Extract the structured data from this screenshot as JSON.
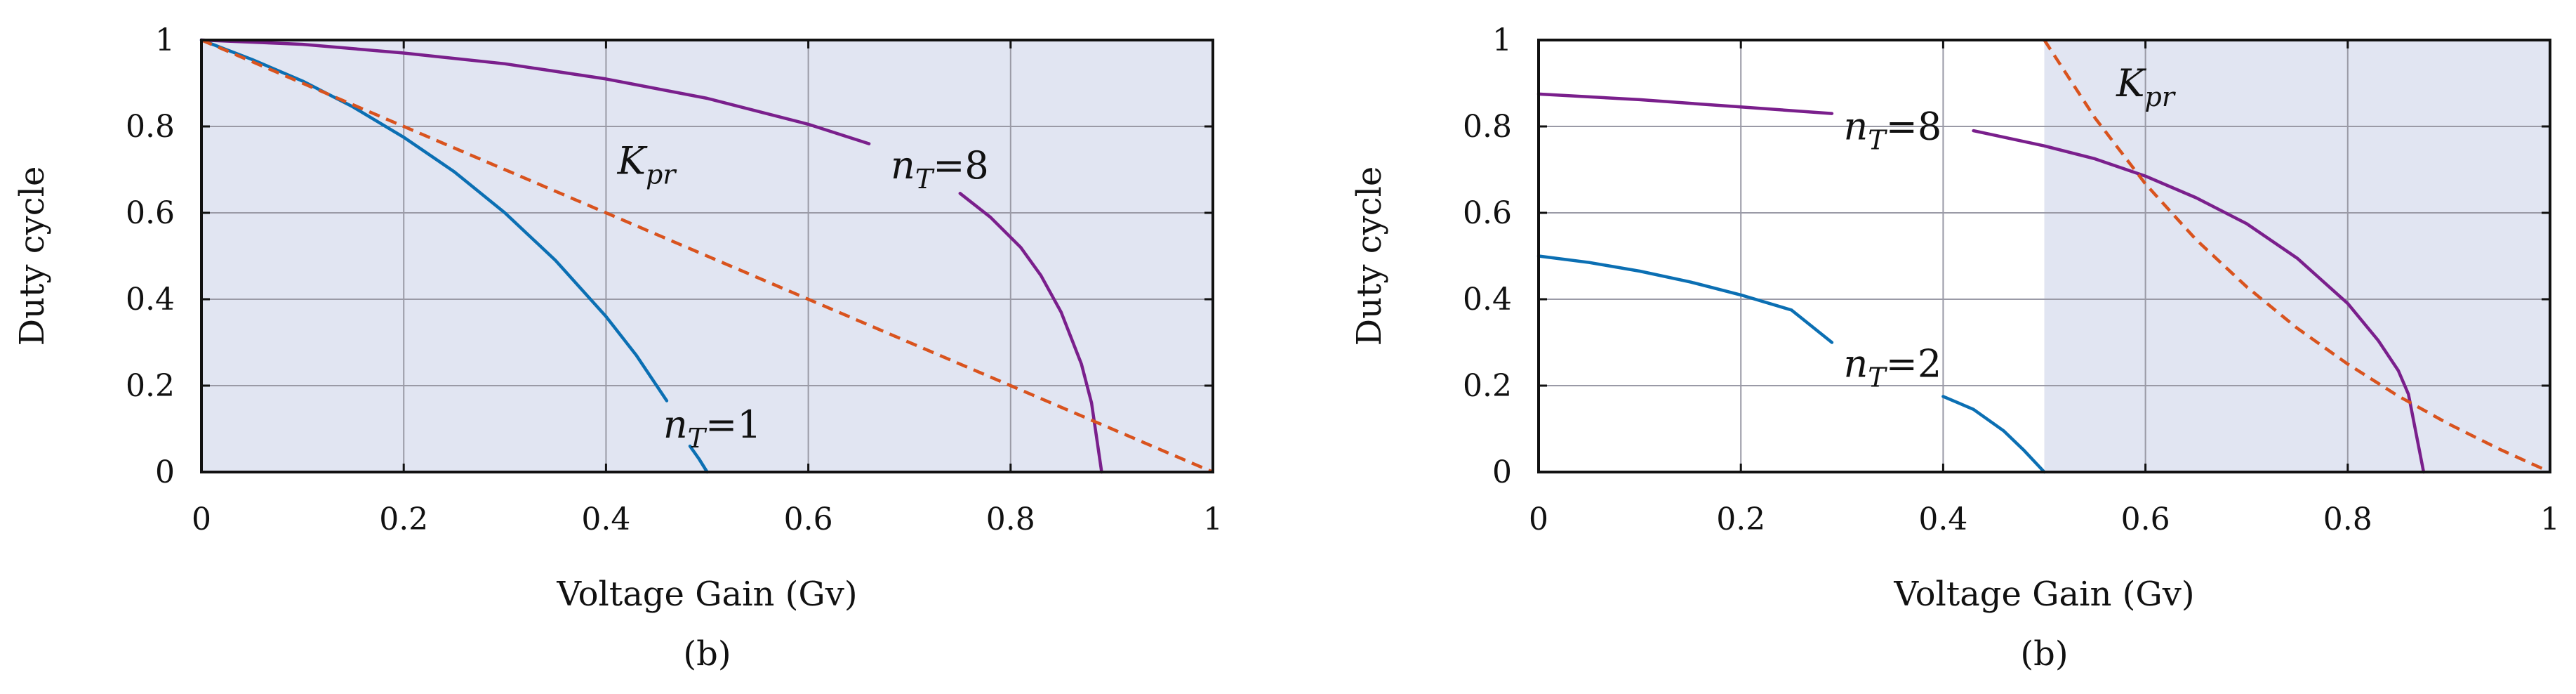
{
  "chart_data": [
    {
      "type": "line",
      "xlabel": "Voltage Gain (Gv)",
      "ylabel": "Duty cycle",
      "caption": "(b)",
      "xlim": [
        0,
        1
      ],
      "ylim": [
        0,
        1
      ],
      "xticks": [
        "0",
        "0.2",
        "0.4",
        "0.6",
        "0.8",
        "1"
      ],
      "yticks": [
        "0",
        "0.2",
        "0.4",
        "0.6",
        "0.8",
        "1"
      ],
      "grid": true,
      "shaded_region": [
        0,
        1
      ],
      "colors": {
        "shade": "#e1e5f2",
        "nT_low": "#0b6fb3",
        "nT_high": "#7a1f8c",
        "Kpr": "#d9531e"
      },
      "labels": {
        "nT_low": {
          "prefix": "n",
          "sub": "T",
          "value": "=1"
        },
        "nT_high": {
          "prefix": "n",
          "sub": "T",
          "value": "=8"
        },
        "Kpr": {
          "prefix": "K",
          "sub": "pr"
        }
      },
      "series": [
        {
          "key": "nT_low",
          "dash": false,
          "segments": [
            [
              [
                0,
                1
              ],
              [
                0.05,
                0.955
              ],
              [
                0.1,
                0.905
              ],
              [
                0.15,
                0.845
              ],
              [
                0.2,
                0.775
              ],
              [
                0.25,
                0.695
              ],
              [
                0.3,
                0.6
              ],
              [
                0.35,
                0.49
              ],
              [
                0.4,
                0.36
              ],
              [
                0.43,
                0.27
              ],
              [
                0.46,
                0.165
              ]
            ],
            [
              [
                0.483,
                0.06
              ],
              [
                0.492,
                0.03
              ],
              [
                0.5,
                0
              ]
            ]
          ]
        },
        {
          "key": "nT_high",
          "dash": false,
          "segments": [
            [
              [
                0,
                1
              ],
              [
                0.1,
                0.99
              ],
              [
                0.2,
                0.97
              ],
              [
                0.3,
                0.945
              ],
              [
                0.4,
                0.91
              ],
              [
                0.5,
                0.865
              ],
              [
                0.6,
                0.805
              ],
              [
                0.66,
                0.76
              ]
            ],
            [
              [
                0.75,
                0.645
              ],
              [
                0.78,
                0.59
              ],
              [
                0.81,
                0.52
              ],
              [
                0.83,
                0.455
              ],
              [
                0.85,
                0.37
              ],
              [
                0.87,
                0.25
              ],
              [
                0.88,
                0.16
              ],
              [
                0.89,
                0
              ]
            ]
          ]
        },
        {
          "key": "Kpr",
          "dash": true,
          "segments": [
            [
              [
                0,
                1
              ],
              [
                1,
                0
              ]
            ]
          ]
        }
      ]
    },
    {
      "type": "line",
      "xlabel": "Voltage Gain (Gv)",
      "ylabel": "Duty cycle",
      "caption": "(b)",
      "xlim": [
        0,
        1
      ],
      "ylim": [
        0,
        1
      ],
      "xticks": [
        "0",
        "0.2",
        "0.4",
        "0.6",
        "0.8",
        "1"
      ],
      "yticks": [
        "0",
        "0.2",
        "0.4",
        "0.6",
        "0.8",
        "1"
      ],
      "grid": true,
      "shaded_region": [
        0.5,
        1
      ],
      "colors": {
        "shade": "#e1e5f2",
        "nT_low": "#0b6fb3",
        "nT_high": "#7a1f8c",
        "Kpr": "#d9531e"
      },
      "labels": {
        "nT_low": {
          "prefix": "n",
          "sub": "T",
          "value": "=2"
        },
        "nT_high": {
          "prefix": "n",
          "sub": "T",
          "value": "=8"
        },
        "Kpr": {
          "prefix": "K",
          "sub": "pr"
        }
      },
      "series": [
        {
          "key": "nT_low",
          "dash": false,
          "segments": [
            [
              [
                0,
                0.5
              ],
              [
                0.05,
                0.485
              ],
              [
                0.1,
                0.465
              ],
              [
                0.15,
                0.44
              ],
              [
                0.2,
                0.41
              ],
              [
                0.25,
                0.375
              ],
              [
                0.29,
                0.3
              ]
            ],
            [
              [
                0.4,
                0.175
              ],
              [
                0.43,
                0.145
              ],
              [
                0.46,
                0.095
              ],
              [
                0.48,
                0.05
              ],
              [
                0.5,
                0
              ]
            ]
          ]
        },
        {
          "key": "nT_high",
          "dash": false,
          "segments": [
            [
              [
                0,
                0.875
              ],
              [
                0.1,
                0.862
              ],
              [
                0.2,
                0.845
              ],
              [
                0.29,
                0.83
              ]
            ],
            [
              [
                0.43,
                0.79
              ],
              [
                0.5,
                0.755
              ],
              [
                0.55,
                0.725
              ],
              [
                0.6,
                0.685
              ],
              [
                0.65,
                0.635
              ],
              [
                0.7,
                0.575
              ],
              [
                0.75,
                0.495
              ],
              [
                0.8,
                0.39
              ],
              [
                0.83,
                0.305
              ],
              [
                0.85,
                0.235
              ],
              [
                0.86,
                0.18
              ],
              [
                0.875,
                0
              ]
            ]
          ]
        },
        {
          "key": "Kpr",
          "dash": true,
          "segments": [
            [
              [
                0.5,
                1
              ],
              [
                0.55,
                0.82
              ],
              [
                0.6,
                0.667
              ],
              [
                0.65,
                0.538
              ],
              [
                0.7,
                0.429
              ],
              [
                0.75,
                0.333
              ],
              [
                0.8,
                0.25
              ],
              [
                0.85,
                0.176
              ],
              [
                0.9,
                0.111
              ],
              [
                0.95,
                0.053
              ],
              [
                1,
                0
              ]
            ]
          ]
        }
      ]
    }
  ]
}
